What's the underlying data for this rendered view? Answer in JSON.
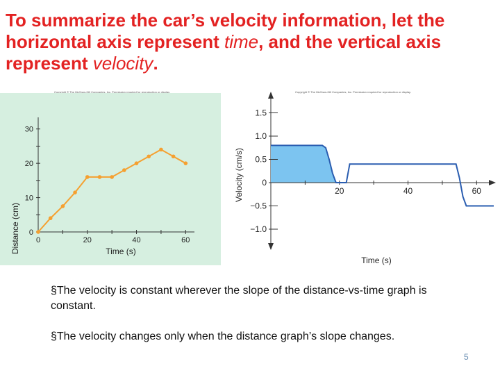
{
  "title": {
    "part1": "To summarize the car’s velocity information, let the horizontal axis represent ",
    "em1": "time",
    "part2": ", and the vertical axis represent ",
    "em2": "velocity",
    "part3": "."
  },
  "copyright_left": "Copyright © The McGraw-Hill Companies, Inc. Permission required for reproduction or display.",
  "copyright_right": "Copyright © The McGraw-Hill Companies, Inc. Permission required for reproduction or display.",
  "bullets": [
    "The velocity is constant wherever the slope of the distance-vs-time graph is constant.",
    "The velocity changes only when the distance graph’s slope changes."
  ],
  "page_number": "5",
  "chart_data": [
    {
      "type": "line",
      "xlabel": "Time (s)",
      "ylabel": "Distance (cm)",
      "xlim": [
        0,
        65
      ],
      "ylim": [
        0,
        35
      ],
      "x_ticks": [
        "0",
        "20",
        "40",
        "60"
      ],
      "y_ticks": [
        "0",
        "10",
        "20",
        "30"
      ],
      "series": [
        {
          "x": [
            0,
            5,
            10,
            15,
            20,
            25,
            30,
            35,
            40,
            45,
            50,
            55,
            60
          ],
          "y": [
            0,
            4,
            7.5,
            11.5,
            16,
            16,
            16,
            18,
            20,
            22,
            24,
            22,
            20
          ]
        }
      ],
      "colors": {
        "line": "#f5a030",
        "marker": "#f5a030",
        "background": "#d6efe0"
      }
    },
    {
      "type": "line",
      "xlabel": "Time (s)",
      "ylabel": "Velocity (cm/s)",
      "xlim": [
        0,
        65
      ],
      "ylim": [
        -1.3,
        1.7
      ],
      "x_ticks": [
        "20",
        "40",
        "60"
      ],
      "y_ticks": [
        "1.5",
        "1.0",
        "0.5",
        "0",
        "−0.5",
        "−1.0"
      ],
      "series": [
        {
          "x": [
            0,
            15,
            16,
            17,
            18,
            19,
            20,
            21,
            22,
            23,
            36,
            37,
            38,
            39,
            40,
            41,
            42,
            54,
            55,
            56,
            57,
            58,
            59,
            60,
            61,
            65
          ],
          "y": [
            0.8,
            0.8,
            0.75,
            0.5,
            0.2,
            0,
            0,
            0,
            0,
            0.4,
            0.4,
            0.4,
            0.4,
            0.4,
            0.4,
            0.4,
            0.4,
            0.4,
            0.1,
            -0.3,
            -0.5,
            -0.5,
            -0.5,
            -0.5,
            -0.5,
            -0.5
          ]
        }
      ],
      "colors": {
        "line": "#2a5db0",
        "fill": "#7cc4f0"
      }
    }
  ]
}
